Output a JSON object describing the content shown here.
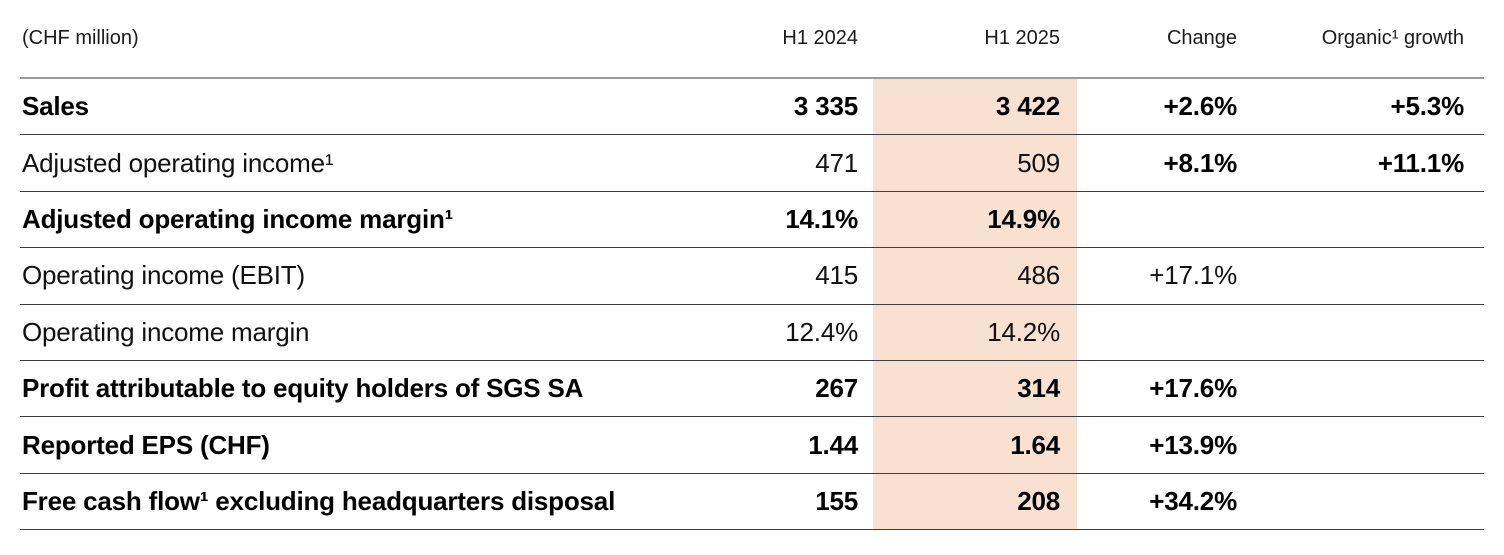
{
  "chart_data": {
    "type": "table",
    "unit_label": "(CHF million)",
    "columns": [
      "H1 2024",
      "H1 2025",
      "Change",
      "Organic¹ growth"
    ],
    "highlight_column": "H1 2025",
    "highlight_color": "#f9e1d1",
    "rows": [
      {
        "label": "Sales",
        "bold": true,
        "h1_2024": "3 335",
        "h1_2025": "3 422",
        "change": "+2.6%",
        "organic_growth": "+5.3%",
        "change_bold": true
      },
      {
        "label": "Adjusted operating income¹",
        "bold": false,
        "h1_2024": "471",
        "h1_2025": "509",
        "change": "+8.1%",
        "organic_growth": "+11.1%",
        "change_bold": true
      },
      {
        "label": "Adjusted operating income margin¹",
        "bold": true,
        "h1_2024": "14.1%",
        "h1_2025": "14.9%",
        "change": "",
        "organic_growth": "",
        "change_bold": true
      },
      {
        "label": "Operating income (EBIT)",
        "bold": false,
        "h1_2024": "415",
        "h1_2025": "486",
        "change": "+17.1%",
        "organic_growth": "",
        "change_bold": false
      },
      {
        "label": "Operating income margin",
        "bold": false,
        "h1_2024": "12.4%",
        "h1_2025": "14.2%",
        "change": "",
        "organic_growth": "",
        "change_bold": false
      },
      {
        "label": "Profit attributable to equity holders of SGS SA",
        "bold": true,
        "h1_2024": "267",
        "h1_2025": "314",
        "change": "+17.6%",
        "organic_growth": "",
        "change_bold": true
      },
      {
        "label": "Reported EPS (CHF)",
        "bold": true,
        "h1_2024": "1.44",
        "h1_2025": "1.64",
        "change": "+13.9%",
        "organic_growth": "",
        "change_bold": true
      },
      {
        "label": "Free cash flow¹ excluding headquarters disposal",
        "bold": true,
        "h1_2024": "155",
        "h1_2025": "208",
        "change": "+34.2%",
        "organic_growth": "",
        "change_bold": true
      }
    ]
  }
}
